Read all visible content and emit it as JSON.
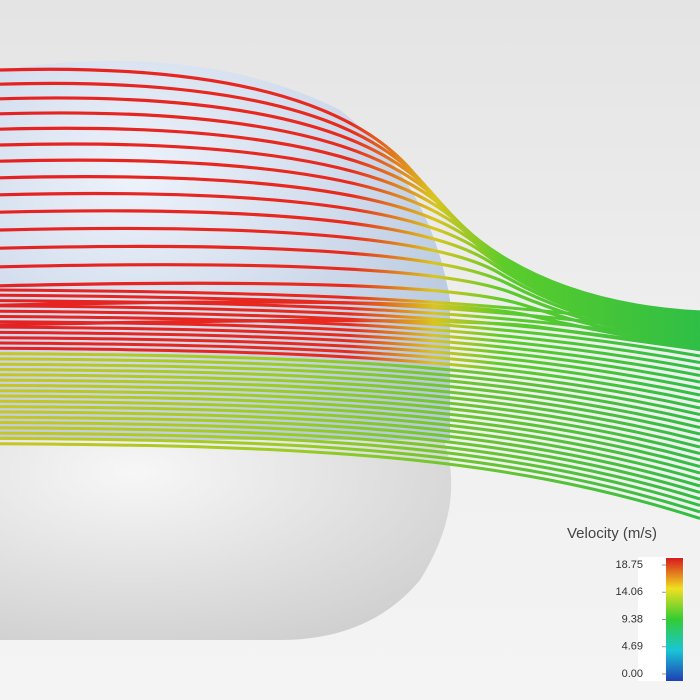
{
  "legend": {
    "title": "Velocity (m/s)",
    "ticks": [
      18.75,
      14.06,
      9.38,
      4.69,
      {
        "value": 0,
        "label": "0.00"
      }
    ]
  }
}
